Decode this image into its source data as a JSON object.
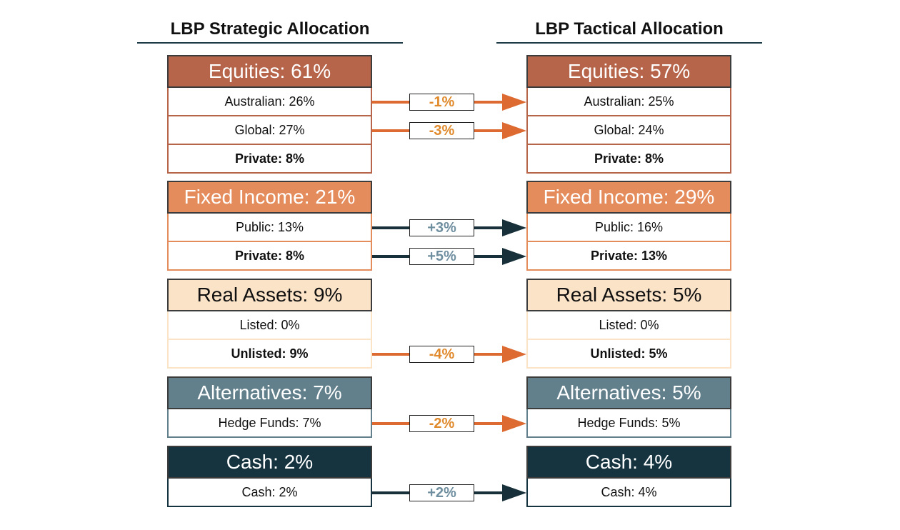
{
  "left_title": "LBP Strategic Allocation",
  "right_title": "LBP Tactical Allocation",
  "colors": {
    "equities_header": "#b6644a",
    "fixed_income_header": "#e58c5c",
    "real_assets_header": "#fbe3c8",
    "alternatives_header": "#627f8c",
    "cash_header": "#163440",
    "arrow_decrease": "#dd6a30",
    "arrow_increase": "#17303a"
  },
  "groups": [
    {
      "id": "equities",
      "strategic_header": "Equities: 61%",
      "tactical_header": "Equities: 57%",
      "rows": [
        {
          "strategic": "Australian: 26%",
          "tactical": "Australian: 25%",
          "bold": false,
          "change": "-1%"
        },
        {
          "strategic": "Global: 27%",
          "tactical": "Global: 24%",
          "bold": false,
          "change": "-3%"
        },
        {
          "strategic": "Private: 8%",
          "tactical": "Private: 8%",
          "bold": true,
          "change": ""
        }
      ]
    },
    {
      "id": "fixed-income",
      "strategic_header": "Fixed Income: 21%",
      "tactical_header": "Fixed Income: 29%",
      "rows": [
        {
          "strategic": "Public: 13%",
          "tactical": "Public: 16%",
          "bold": false,
          "change": "+3%"
        },
        {
          "strategic": "Private: 8%",
          "tactical": "Private: 13%",
          "bold": true,
          "change": "+5%"
        }
      ]
    },
    {
      "id": "real-assets",
      "strategic_header": "Real Assets: 9%",
      "tactical_header": "Real Assets: 5%",
      "rows": [
        {
          "strategic": "Listed: 0%",
          "tactical": "Listed: 0%",
          "bold": false,
          "change": ""
        },
        {
          "strategic": "Unlisted: 9%",
          "tactical": "Unlisted: 5%",
          "bold": true,
          "change": "-4%"
        }
      ]
    },
    {
      "id": "alternatives",
      "strategic_header": "Alternatives: 7%",
      "tactical_header": "Alternatives: 5%",
      "rows": [
        {
          "strategic": "Hedge Funds: 7%",
          "tactical": "Hedge Funds: 5%",
          "bold": false,
          "change": "-2%"
        }
      ]
    },
    {
      "id": "cash",
      "strategic_header": "Cash: 2%",
      "tactical_header": "Cash: 4%",
      "rows": [
        {
          "strategic": "Cash: 2%",
          "tactical": "Cash: 4%",
          "bold": false,
          "change": "+2%"
        }
      ]
    }
  ]
}
